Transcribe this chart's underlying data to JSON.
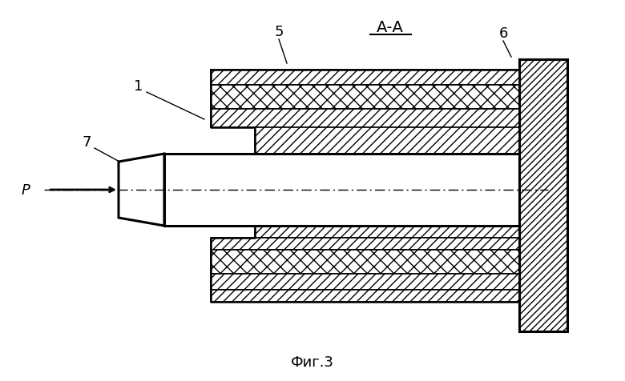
{
  "title": "Фиг.3",
  "label_1": "1",
  "label_5": "5",
  "label_6": "6",
  "label_7": "7",
  "label_P": "Р",
  "label_AA": "А-А",
  "bg_color": "#ffffff",
  "line_color": "#000000",
  "figsize": [
    7.8,
    4.77
  ],
  "dpi": 100
}
